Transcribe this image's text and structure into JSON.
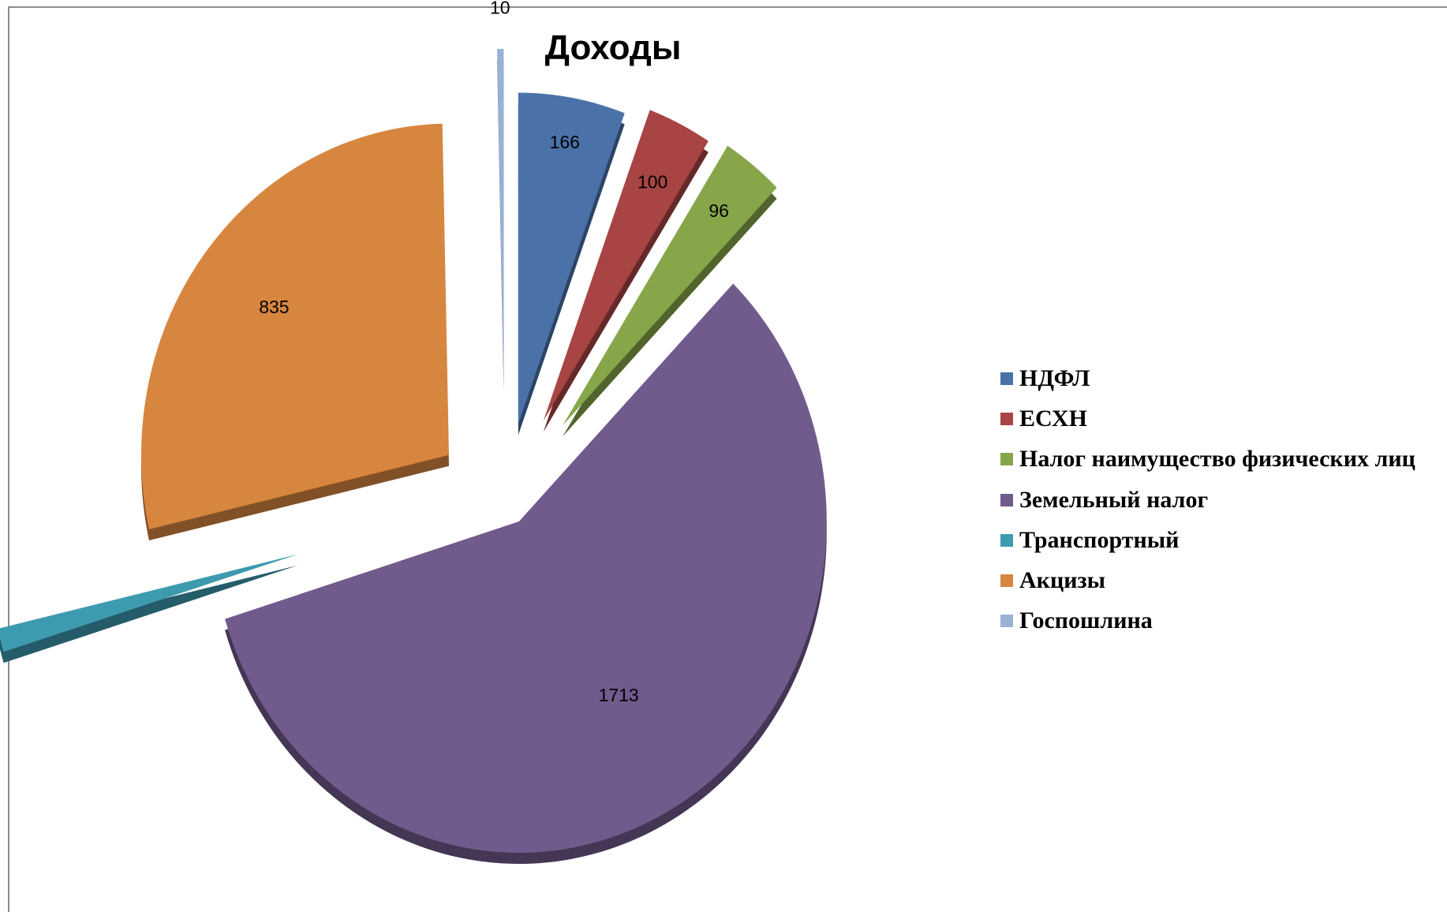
{
  "chart_data": {
    "type": "pie",
    "title": "Доходы",
    "categories": [
      "НДФЛ",
      "ЕСХН",
      "Налог наимущество физических лиц",
      "Земельный налог",
      "Транспортный",
      "Акцизы",
      "Госпошлина"
    ],
    "values": [
      166,
      100,
      96,
      1713,
      34,
      835,
      10
    ],
    "colors": [
      "#4a72a8",
      "#a84444",
      "#87a64a",
      "#715a8c",
      "#3e9aaf",
      "#d78640",
      "#98b1d5"
    ],
    "exploded": true,
    "legend_position": "right"
  }
}
